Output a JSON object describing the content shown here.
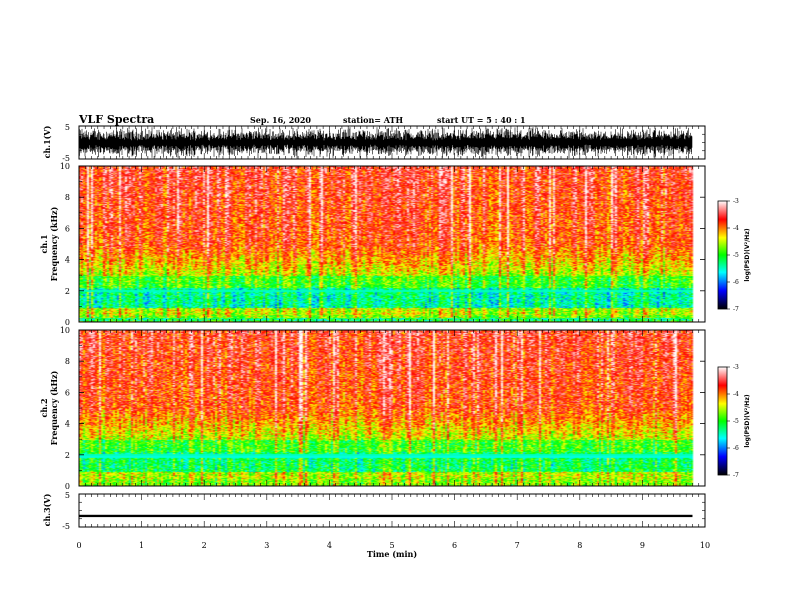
{
  "header": {
    "title": "VLF Spectra",
    "date": "Sep. 16, 2020",
    "station": "station= ATH",
    "start_ut": "start  UT  =  5 : 40 : 1"
  },
  "chart_data": [
    {
      "type": "line",
      "id": "ch1-waveform",
      "ylabel": "ch.1(V)",
      "ylim": [
        -5,
        5
      ],
      "ytick_labels": [
        "5",
        "-5"
      ],
      "xlim": [
        0,
        10
      ],
      "trace_color": "#000000",
      "trace_amplitude_V": [
        -5,
        5
      ]
    },
    {
      "type": "heatmap",
      "id": "ch1-spectrogram",
      "ylabel": "ch.1\nFrequency (kHz)",
      "ylabel_lines": [
        "ch.1",
        "Frequency  (kHz)"
      ],
      "ylim": [
        0,
        10
      ],
      "ytick_labels": [
        "0",
        "2",
        "4",
        "6",
        "8",
        "10"
      ],
      "xlim": [
        0,
        10
      ],
      "data_end_min": 9.8,
      "colorbar": {
        "label": "log(PSD)(V²/Hz)",
        "range": [
          -7,
          -3
        ],
        "tick_labels": [
          "-3",
          "-4",
          "-5",
          "-6",
          "-7"
        ],
        "colors": [
          "#000000",
          "#0000ff",
          "#00ffff",
          "#00ff00",
          "#ffff00",
          "#ff0000",
          "#ffffff"
        ]
      }
    },
    {
      "type": "heatmap",
      "id": "ch2-spectrogram",
      "ylabel": "ch.2\nFrequency (kHz)",
      "ylabel_lines": [
        "ch.2",
        "Frequency  (kHz)"
      ],
      "ylim": [
        0,
        10
      ],
      "ytick_labels": [
        "0",
        "2",
        "4",
        "6",
        "8",
        "10"
      ],
      "xlim": [
        0,
        10
      ],
      "data_end_min": 9.8,
      "colorbar": {
        "label": "log(PSD)(V²/Hz)",
        "range": [
          -7,
          -3
        ],
        "tick_labels": [
          "-3",
          "-4",
          "-5",
          "-6",
          "-7"
        ],
        "colors": [
          "#000000",
          "#0000ff",
          "#00ffff",
          "#00ff00",
          "#ffff00",
          "#ff0000",
          "#ffffff"
        ]
      }
    },
    {
      "type": "line",
      "id": "ch3-waveform",
      "ylabel": "ch.3(V)",
      "ylim": [
        -5,
        5
      ],
      "ytick_labels": [
        "5",
        "-5"
      ],
      "xlim": [
        0,
        10
      ],
      "trace_color": "#000000",
      "trace_band_V": [
        -2,
        -1.3
      ]
    }
  ],
  "x_axis": {
    "label": "Time  (min)",
    "tick_labels": [
      "0",
      "1",
      "2",
      "3",
      "4",
      "5",
      "6",
      "7",
      "8",
      "9",
      "10"
    ]
  }
}
